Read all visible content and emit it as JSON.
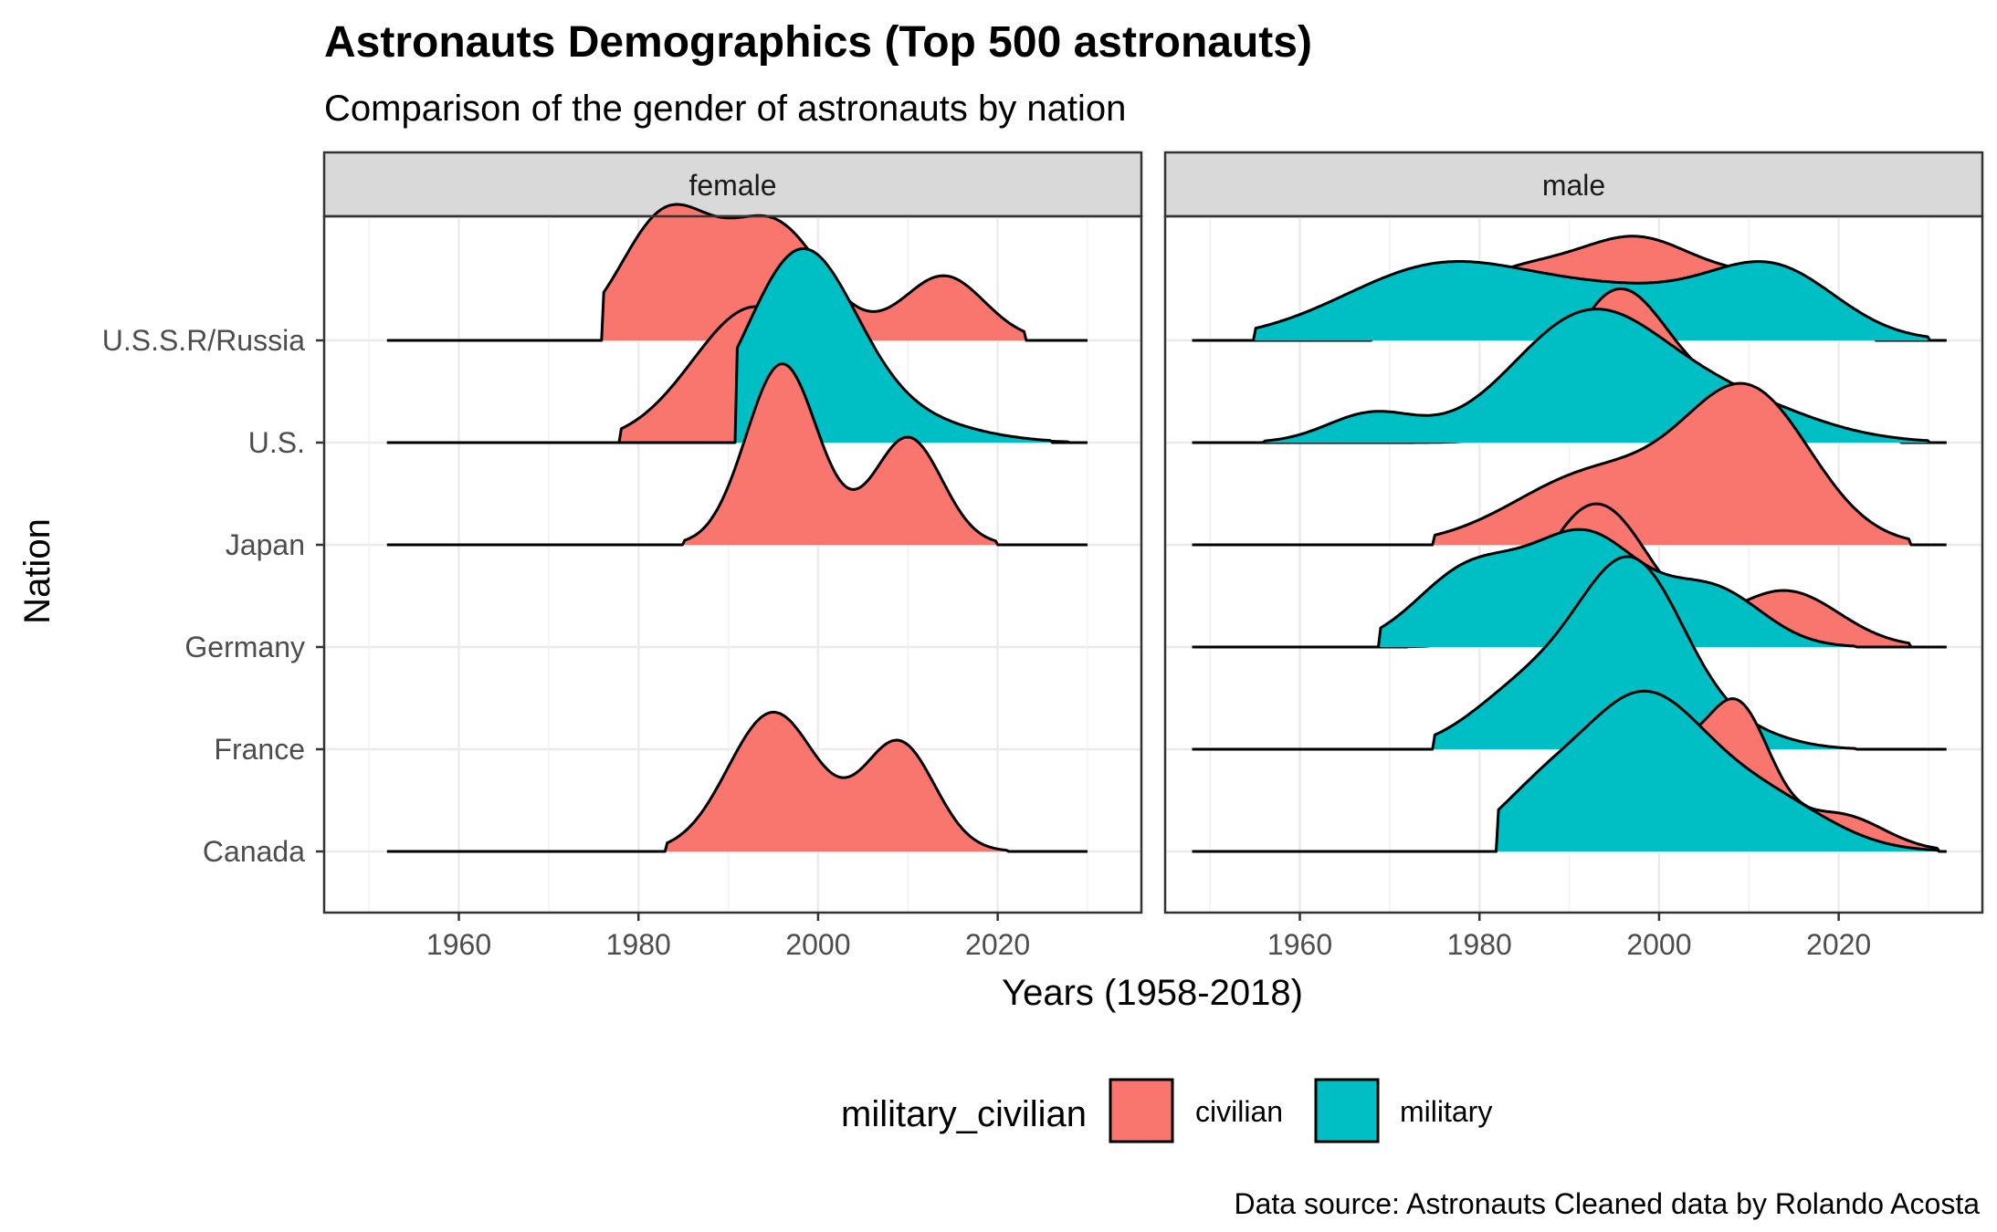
{
  "chart_data": {
    "type": "ridgeline-density",
    "title": "Astronauts Demographics (Top 500 astronauts)",
    "subtitle": "Comparison of the gender of astronauts by nation",
    "caption": "Data source: Astronauts Cleaned data by Rolando Acosta",
    "xlabel": "Years (1958-2018)",
    "ylabel": "Nation",
    "xlim": [
      1945,
      2036
    ],
    "x_ticks": [
      1960,
      1980,
      2000,
      2020
    ],
    "y_categories": [
      "U.S.S.R/Russia",
      "U.S.",
      "Japan",
      "Germany",
      "France",
      "Canada"
    ],
    "grid": true,
    "legend": {
      "title": "military_civilian",
      "position": "bottom",
      "entries": [
        {
          "name": "civilian",
          "color": "#F8766D"
        },
        {
          "name": "military",
          "color": "#00BFC4"
        }
      ]
    },
    "facets": [
      {
        "label": "female",
        "x_range": [
          1952,
          2030
        ],
        "ridges": [
          {
            "nation": "U.S.S.R/Russia",
            "series": [
              {
                "group": "civilian",
                "from": 1976,
                "to": 2023,
                "peaks": [
                  [
                    1983,
                    1.2,
                    5
                  ],
                  [
                    1995,
                    1.13,
                    5.5
                  ],
                  [
                    2014,
                    0.63,
                    4.5
                  ]
                ]
              }
            ]
          },
          {
            "nation": "U.S.",
            "series": [
              {
                "group": "civilian",
                "from": 1978,
                "to": 2028,
                "peaks": [
                  [
                    1993,
                    1.32,
                    7
                  ],
                  [
                    2010,
                    0.1,
                    8
                  ]
                ]
              },
              {
                "group": "military",
                "from": 1991,
                "to": 2026,
                "peaks": [
                  [
                    1998,
                    1.78,
                    6
                  ],
                  [
                    2008,
                    0.25,
                    8
                  ]
                ]
              }
            ]
          },
          {
            "nation": "Japan",
            "series": [
              {
                "group": "civilian",
                "from": 1985,
                "to": 2020,
                "peaks": [
                  [
                    1996,
                    1.77,
                    4
                  ],
                  [
                    2010,
                    1.05,
                    3.8
                  ]
                ]
              }
            ]
          },
          {
            "nation": "Canada",
            "series": [
              {
                "group": "civilian",
                "from": 1983,
                "to": 2021,
                "peaks": [
                  [
                    1995,
                    1.36,
                    5
                  ],
                  [
                    2009,
                    1.06,
                    4
                  ]
                ]
              }
            ]
          }
        ]
      },
      {
        "label": "male",
        "x_range": [
          1948,
          2032
        ],
        "ridges": [
          {
            "nation": "U.S.S.R/Russia",
            "series": [
              {
                "group": "civilian",
                "from": 1968,
                "to": 2024,
                "peaks": [
                  [
                    1984,
                    0.65,
                    8
                  ],
                  [
                    1998,
                    0.8,
                    6.5
                  ],
                  [
                    2012,
                    0.55,
                    7
                  ]
                ]
              },
              {
                "group": "military",
                "from": 1955,
                "to": 2030,
                "peaks": [
                  [
                    1976,
                    0.73,
                    11
                  ],
                  [
                    1998,
                    0.4,
                    10
                  ],
                  [
                    2013,
                    0.62,
                    7
                  ]
                ]
              }
            ]
          },
          {
            "nation": "U.S.",
            "series": [
              {
                "group": "civilian",
                "from": 1958,
                "to": 2027,
                "peaks": [
                  [
                    1995,
                    1.32,
                    5.5
                  ],
                  [
                    2006,
                    0.45,
                    8
                  ]
                ]
              },
              {
                "group": "military",
                "from": 1956,
                "to": 2030,
                "peaks": [
                  [
                    1968,
                    0.28,
                    5
                  ],
                  [
                    1992,
                    1.22,
                    8.5
                  ],
                  [
                    2008,
                    0.38,
                    9
                  ]
                ]
              }
            ]
          },
          {
            "nation": "Japan",
            "series": [
              {
                "group": "civilian",
                "from": 1975,
                "to": 2028,
                "peaks": [
                  [
                    1993,
                    0.7,
                    9
                  ],
                  [
                    2010,
                    1.45,
                    7
                  ]
                ]
              }
            ]
          },
          {
            "nation": "Germany",
            "series": [
              {
                "group": "civilian",
                "from": 1972,
                "to": 2028,
                "peaks": [
                  [
                    1993,
                    1.4,
                    6
                  ],
                  [
                    2014,
                    0.55,
                    6
                  ]
                ]
              },
              {
                "group": "military",
                "from": 1969,
                "to": 2022,
                "peaks": [
                  [
                    1979,
                    0.75,
                    6
                  ],
                  [
                    1992,
                    1.05,
                    6
                  ],
                  [
                    2006,
                    0.55,
                    5.5
                  ]
                ]
              }
            ]
          },
          {
            "nation": "France",
            "series": [
              {
                "group": "military",
                "from": 1975,
                "to": 2022,
                "peaks": [
                  [
                    1985,
                    0.55,
                    6
                  ],
                  [
                    1997,
                    1.8,
                    6
                  ],
                  [
                    2010,
                    0.12,
                    5
                  ]
                ]
              }
            ]
          },
          {
            "nation": "Canada",
            "series": [
              {
                "group": "civilian",
                "from": 1982,
                "to": 2031,
                "peaks": [
                  [
                    1997,
                    1.2,
                    8
                  ],
                  [
                    2009,
                    1.05,
                    3.5
                  ],
                  [
                    2020,
                    0.35,
                    5
                  ]
                ]
              },
              {
                "group": "military",
                "from": 1982,
                "to": 2031,
                "peaks": [
                  [
                    1986,
                    0.4,
                    5
                  ],
                  [
                    1998,
                    1.48,
                    7
                  ],
                  [
                    2012,
                    0.48,
                    7
                  ]
                ]
              }
            ]
          }
        ]
      }
    ]
  }
}
